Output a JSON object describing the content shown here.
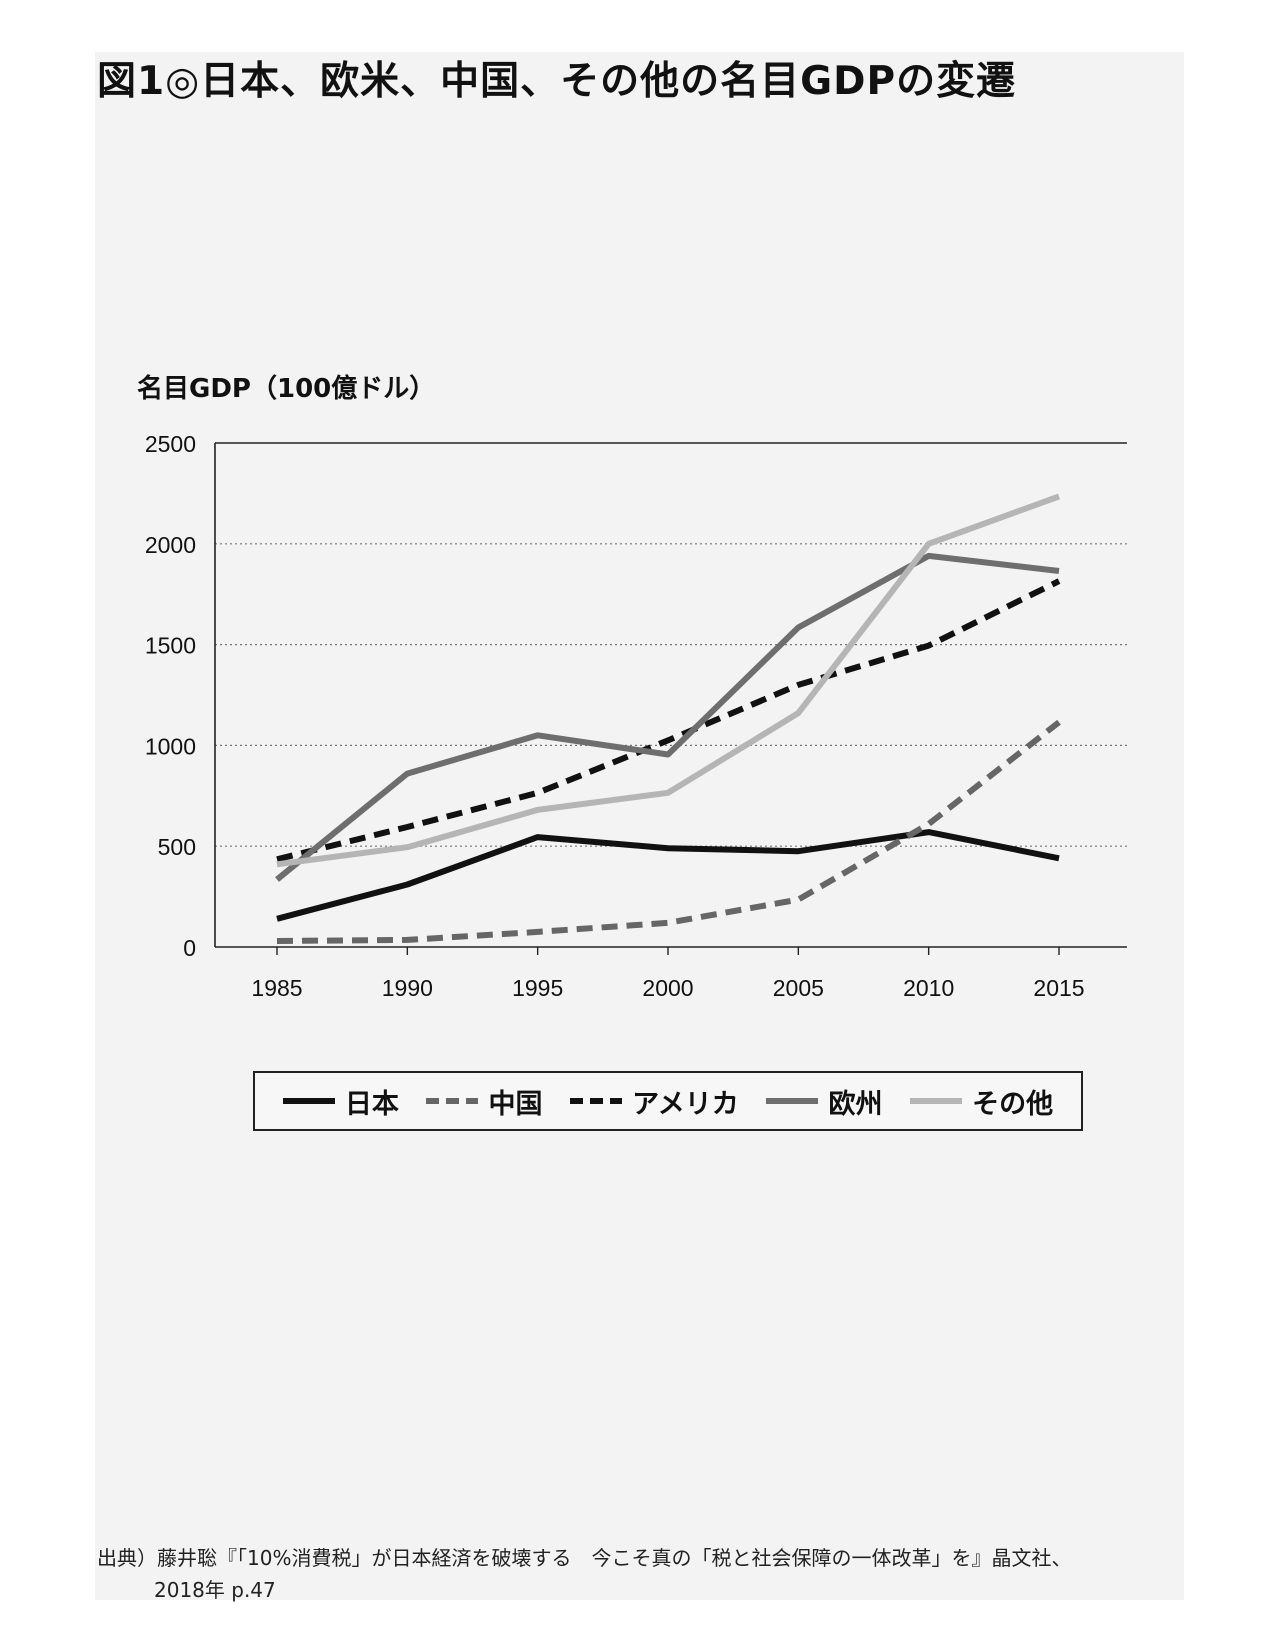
{
  "figure": {
    "title": "図1◎日本、欧米、中国、その他の名目GDPの変遷",
    "source_line1": "出典）藤井聡『「10%消費税」が日本経済を破壊する　今こそ真の「税と社会保障の一体改革」を』晶文社、",
    "source_line2": "2018年 p.47"
  },
  "chart_data": {
    "type": "line",
    "ylabel": "名目GDP（100億ドル）",
    "xlabel": "",
    "x": [
      1985,
      1990,
      1995,
      2000,
      2005,
      2010,
      2015
    ],
    "x_tick_labels": [
      "1985",
      "1990",
      "1995",
      "2000",
      "2005",
      "2010",
      "2015"
    ],
    "ylim": [
      0,
      2500
    ],
    "y_ticks": [
      0,
      500,
      1000,
      1500,
      2000,
      2500
    ],
    "y_tick_labels": [
      "0",
      "500",
      "1000",
      "1500",
      "2000",
      "2500"
    ],
    "grid": "horizontal-dotted",
    "legend_position": "bottom",
    "series": [
      {
        "name": "日本",
        "values": [
          140,
          310,
          545,
          490,
          475,
          570,
          440
        ],
        "color": "#111111",
        "dash": "solid"
      },
      {
        "name": "中国",
        "values": [
          30,
          35,
          75,
          120,
          235,
          610,
          1115
        ],
        "color": "#666666",
        "dash": "dashed"
      },
      {
        "name": "アメリカ",
        "values": [
          435,
          595,
          765,
          1025,
          1300,
          1495,
          1815
        ],
        "color": "#111111",
        "dash": "dashed"
      },
      {
        "name": "欧州",
        "values": [
          335,
          860,
          1050,
          955,
          1585,
          1940,
          1865
        ],
        "color": "#6e6e6e",
        "dash": "solid"
      },
      {
        "name": "その他",
        "values": [
          410,
          495,
          680,
          765,
          1160,
          2000,
          2235
        ],
        "color": "#b5b5b5",
        "dash": "solid"
      }
    ]
  }
}
